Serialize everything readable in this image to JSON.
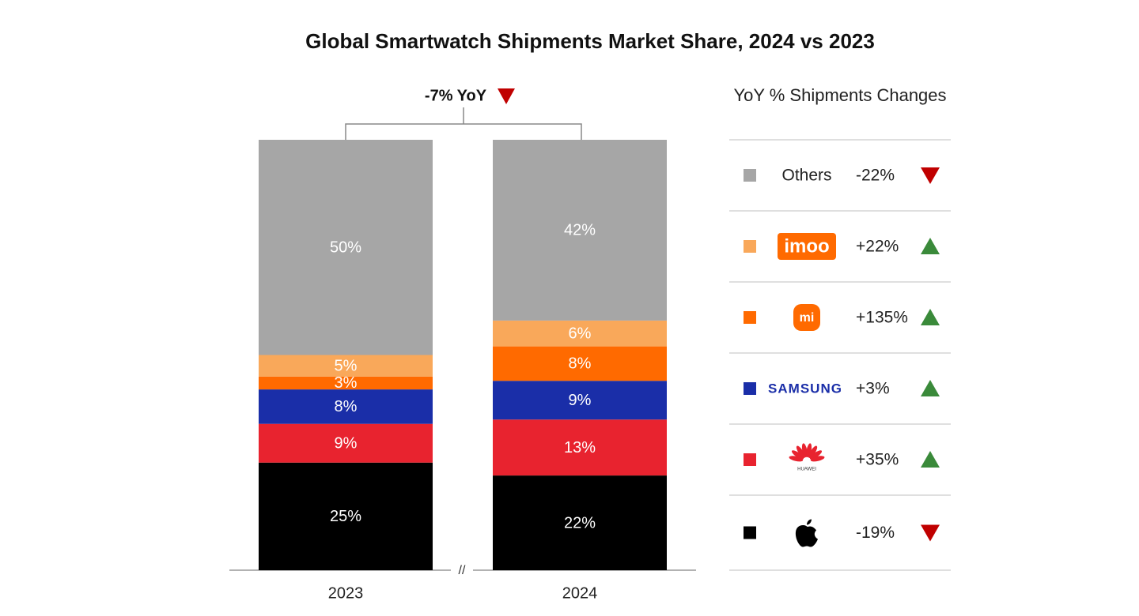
{
  "chart_data": {
    "type": "stacked_bar",
    "title": "Global Smartwatch Shipments Market Share, 2024 vs 2023",
    "annotation": "-7% YoY",
    "annotation_value": -7,
    "legend_title": "YoY % Shipments Changes",
    "categories": [
      "2023",
      "2024"
    ],
    "ylim": [
      0,
      100
    ],
    "series": [
      {
        "name": "Others",
        "color": "#a6a6a6",
        "values": [
          50,
          42
        ],
        "value_labels": [
          "50%",
          "42%"
        ],
        "yoy": -22,
        "yoy_label": "-22%"
      },
      {
        "name": "imoo",
        "color": "#f9a85a",
        "values": [
          5,
          6
        ],
        "value_labels": [
          "5%",
          "6%"
        ],
        "yoy": 22,
        "yoy_label": "+22%"
      },
      {
        "name": "mi",
        "color": "#ff6a00",
        "values": [
          3,
          8
        ],
        "value_labels": [
          "3%",
          "8%"
        ],
        "yoy": 135,
        "yoy_label": "+135%"
      },
      {
        "name": "SAMSUNG",
        "color": "#1a2ea8",
        "values": [
          8,
          9
        ],
        "value_labels": [
          "8%",
          "9%"
        ],
        "yoy": 3,
        "yoy_label": "+3%"
      },
      {
        "name": "HUAWEI",
        "color": "#e8232f",
        "values": [
          9,
          13
        ],
        "value_labels": [
          "9%",
          "13%"
        ],
        "yoy": 35,
        "yoy_label": "+35%"
      },
      {
        "color": "#000000",
        "values": [
          25,
          22
        ],
        "value_labels": [
          "25%",
          "22%"
        ],
        "yoy": -19,
        "yoy_label": "-19%"
      }
    ]
  }
}
